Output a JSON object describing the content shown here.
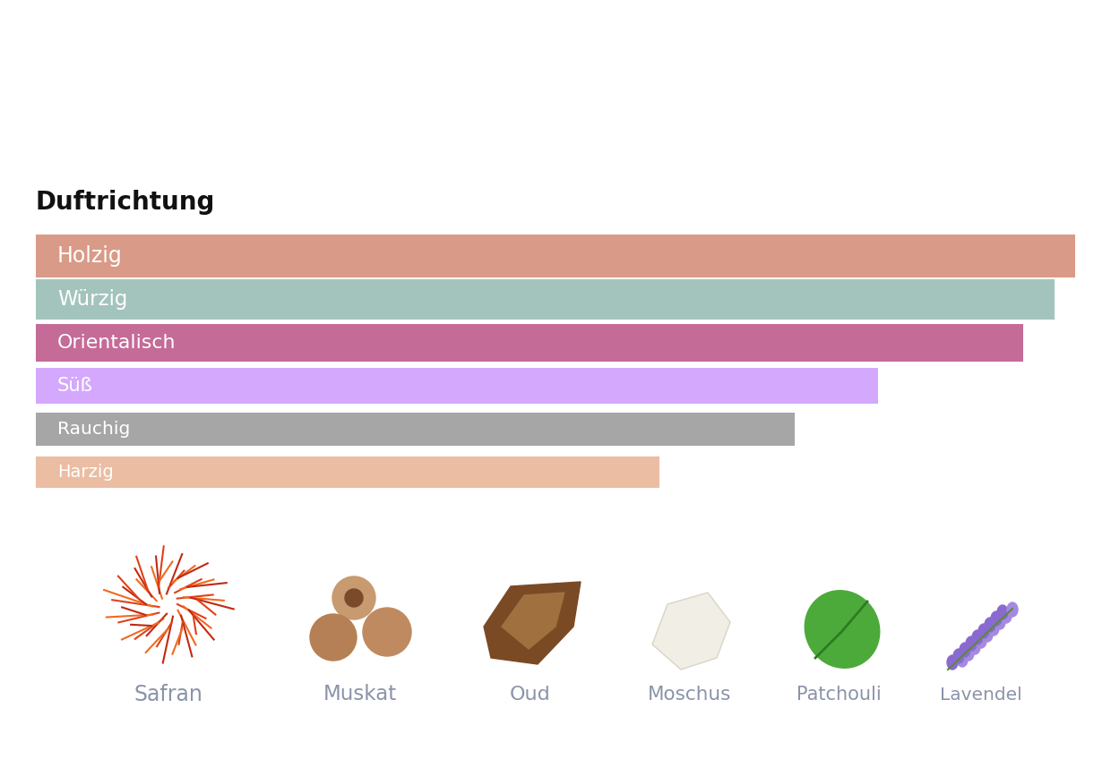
{
  "chart_data": {
    "type": "bar",
    "title": "Duftrichtung",
    "orientation": "horizontal",
    "categories": [
      "Holzig",
      "Würzig",
      "Orientalisch",
      "Süß",
      "Rauchig",
      "Harzig"
    ],
    "values": [
      100,
      98,
      95,
      81,
      73,
      60
    ],
    "colors": [
      "#d99a88",
      "#a3c4bc",
      "#c56b98",
      "#d4a8fc",
      "#a6a6a6",
      "#ebbda3"
    ],
    "xlim": [
      0,
      100
    ],
    "tick_labels": false,
    "grid": false
  },
  "notes": [
    "Safran",
    "Muskat",
    "Oud",
    "Moschus",
    "Patchouli",
    "Lavendel"
  ]
}
